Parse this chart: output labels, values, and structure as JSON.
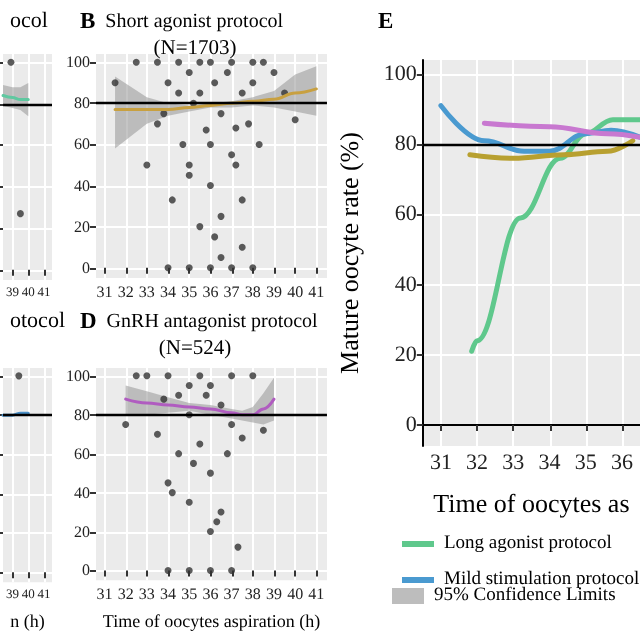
{
  "chart_data": [
    {
      "type": "scatter",
      "title": "ocol",
      "xlim": [
        38.4,
        41.5
      ],
      "xticks": [
        39,
        40,
        41
      ],
      "ylim": [
        -5,
        104
      ],
      "yticks": [
        0,
        20,
        40,
        60,
        80,
        100
      ],
      "tick_labels": "x",
      "grid": true,
      "ref_lines": [
        {
          "axis": "y",
          "value": 80,
          "color": "#000000"
        }
      ],
      "series": [
        {
          "color": "#333333",
          "x": [
            38.9,
            39.5
          ],
          "values": [
            100,
            27
          ]
        },
        {
          "type": "line",
          "color": "#5fc8a0",
          "x": [
            38.4,
            39,
            39.5,
            40
          ],
          "values": [
            84,
            83,
            82,
            82
          ],
          "lower": [
            79,
            78,
            77,
            74
          ],
          "upper": [
            89,
            88,
            88,
            90
          ]
        }
      ]
    },
    {
      "type": "scatter",
      "title": "B Short agonist protocol",
      "subtitle": "(N=1703)",
      "xlim": [
        30.6,
        41.5
      ],
      "xticks": [
        31,
        32,
        33,
        34,
        35,
        36,
        37,
        38,
        39,
        40,
        41
      ],
      "ylim": [
        -5,
        104
      ],
      "yticks": [
        0,
        20,
        40,
        60,
        80,
        100
      ],
      "grid": true,
      "ref_lines": [
        {
          "axis": "y",
          "value": 80,
          "color": "#000000"
        }
      ],
      "series": [
        {
          "color": "#333333",
          "x": [
            31.5,
            32.5,
            33,
            33.5,
            33.8,
            34,
            34.2,
            34.5,
            34.7,
            35,
            35,
            35.2,
            35.5,
            35.5,
            35.8,
            36,
            36,
            36.2,
            36.5,
            36.5,
            36.8,
            37,
            37,
            37.2,
            37.5,
            37.5,
            37.8,
            38,
            38,
            38.3,
            38.5,
            39,
            39.5,
            40,
            34,
            35,
            36,
            37,
            38,
            35.5,
            36.5,
            37.5,
            33.5,
            36,
            34.5,
            35,
            36.2,
            37.2
          ],
          "values": [
            90,
            100,
            50,
            100,
            75,
            90,
            33,
            100,
            60,
            95,
            50,
            80,
            100,
            85,
            67,
            100,
            40,
            90,
            75,
            25,
            95,
            100,
            55,
            68,
            85,
            10,
            70,
            100,
            90,
            60,
            100,
            95,
            85,
            72,
            0,
            0,
            0,
            0,
            0,
            20,
            5,
            33,
            70,
            60,
            85,
            45,
            15,
            50
          ]
        },
        {
          "type": "line",
          "color": "#c8a040",
          "x": [
            31.5,
            33,
            34,
            35,
            36,
            37,
            38,
            39,
            40,
            41
          ],
          "values": [
            77,
            77,
            77,
            78,
            79,
            80,
            81,
            82,
            85,
            87
          ],
          "lower": [
            58,
            70,
            74,
            76,
            78,
            78,
            79,
            78,
            76,
            74
          ],
          "upper": [
            93,
            83,
            80,
            79,
            80,
            81,
            83,
            86,
            94,
            98
          ]
        }
      ]
    },
    {
      "type": "scatter",
      "title": "otocol",
      "xlabel": "n (h)",
      "xlim": [
        38.4,
        41.5
      ],
      "xticks": [
        39,
        40,
        41
      ],
      "ylim": [
        -5,
        104
      ],
      "yticks": [
        0,
        20,
        40,
        60,
        80,
        100
      ],
      "tick_labels": "x",
      "grid": true,
      "ref_lines": [
        {
          "axis": "y",
          "value": 80,
          "color": "#000000"
        }
      ],
      "series": [
        {
          "color": "#333333",
          "x": [
            39.4
          ],
          "values": [
            100
          ]
        },
        {
          "type": "line",
          "color": "#4a90c8",
          "x": [
            38.4,
            39,
            39.5,
            40
          ],
          "values": [
            80,
            80,
            81,
            81
          ]
        }
      ]
    },
    {
      "type": "scatter",
      "title": "D GnRH antagonist protocol",
      "subtitle": "(N=524)",
      "xlabel": "Time of oocytes aspiration (h)",
      "xlim": [
        30.6,
        41.5
      ],
      "xticks": [
        31,
        32,
        33,
        34,
        35,
        36,
        37,
        38,
        39,
        40,
        41
      ],
      "ylim": [
        -5,
        104
      ],
      "yticks": [
        0,
        20,
        40,
        60,
        80,
        100
      ],
      "grid": true,
      "ref_lines": [
        {
          "axis": "y",
          "value": 80,
          "color": "#000000"
        }
      ],
      "series": [
        {
          "color": "#333333",
          "x": [
            32,
            32.5,
            33,
            33.5,
            34,
            34,
            34.5,
            34.5,
            35,
            35,
            35,
            35.5,
            35.5,
            36,
            36,
            36,
            36.5,
            36.5,
            37,
            37,
            37.5,
            38,
            38.5,
            34.2,
            35.2,
            35.8,
            36.3,
            36.8,
            34,
            35,
            36,
            37,
            33.8,
            37.3
          ],
          "values": [
            75,
            100,
            100,
            70,
            100,
            45,
            90,
            60,
            95,
            80,
            35,
            100,
            65,
            95,
            50,
            20,
            85,
            30,
            100,
            75,
            68,
            100,
            72,
            40,
            55,
            90,
            25,
            60,
            0,
            0,
            0,
            0,
            88,
            12
          ]
        },
        {
          "type": "line",
          "color": "#b05cc0",
          "x": [
            32,
            33,
            34,
            35,
            36,
            37,
            37.5,
            38,
            38.5,
            39
          ],
          "values": [
            88,
            86,
            85,
            84,
            83,
            81,
            80,
            80,
            83,
            88
          ],
          "lower": [
            80,
            80,
            81,
            82,
            80,
            78,
            77,
            76,
            75,
            77
          ],
          "upper": [
            95,
            92,
            89,
            86,
            85,
            83,
            82,
            84,
            91,
            99
          ]
        }
      ]
    },
    {
      "type": "line",
      "title": "E",
      "xlabel": "Time of oocytes as",
      "ylabel": "Mature oocyte rate (%)",
      "xlim": [
        30.5,
        36.5
      ],
      "xticks": [
        31,
        32,
        33,
        34,
        35,
        36
      ],
      "ylim": [
        -6,
        104
      ],
      "yticks": [
        0,
        20,
        40,
        60,
        80,
        100
      ],
      "grid": true,
      "legend": "bottom",
      "annotations": [
        "95% Confidence Limits"
      ],
      "ref_lines": [
        {
          "axis": "y",
          "value": 80,
          "color": "#000000"
        }
      ],
      "series": [
        {
          "name": "Long agonist protocol",
          "color": "#5fc88c",
          "x": [
            31.85,
            32,
            33.2,
            34.3,
            35,
            35.75,
            36.5
          ],
          "values": [
            21,
            24,
            59,
            76,
            83,
            87,
            87
          ]
        },
        {
          "name": "Mild stimulation protocol",
          "color": "#4a9ad0",
          "x": [
            31,
            32.2,
            33.3,
            34,
            35,
            35.7,
            36.5
          ],
          "values": [
            91,
            81,
            78,
            78,
            83,
            84,
            82
          ]
        },
        {
          "color": "#b8a030",
          "x": [
            31.8,
            33,
            34.4,
            35.6,
            36.3
          ],
          "values": [
            77,
            76,
            77,
            78,
            81
          ]
        },
        {
          "color": "#c878d0",
          "x": [
            32.2,
            34,
            35.6,
            36.5
          ],
          "values": [
            86,
            85,
            83,
            82
          ]
        }
      ]
    }
  ]
}
